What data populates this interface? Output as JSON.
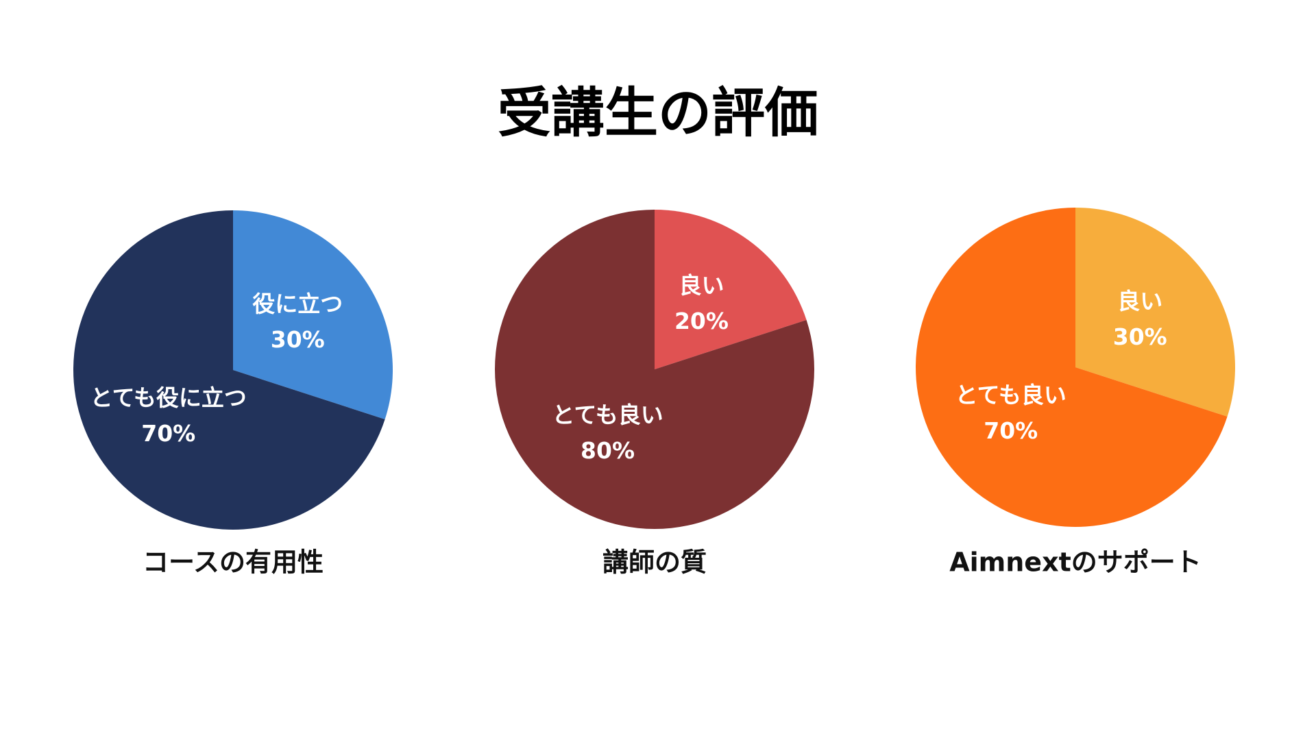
{
  "title": "受講生の評価",
  "chart_data": [
    {
      "type": "pie",
      "title": "コースの有用性",
      "categories": [
        "役に立つ",
        "とても役に立つ"
      ],
      "values": [
        30,
        70
      ],
      "value_labels": [
        "30%",
        "70%"
      ],
      "colors": [
        "#4289d6",
        "#22335b"
      ]
    },
    {
      "type": "pie",
      "title": "講師の質",
      "categories": [
        "良い",
        "とても良い"
      ],
      "values": [
        20,
        80
      ],
      "value_labels": [
        "20%",
        "80%"
      ],
      "colors": [
        "#e05252",
        "#7c3132"
      ]
    },
    {
      "type": "pie",
      "title": "Aimnextのサポート",
      "categories": [
        "良い",
        "とても良い"
      ],
      "values": [
        30,
        70
      ],
      "value_labels": [
        "30%",
        "70%"
      ],
      "colors": [
        "#f7ad3c",
        "#fd6e14"
      ]
    }
  ]
}
